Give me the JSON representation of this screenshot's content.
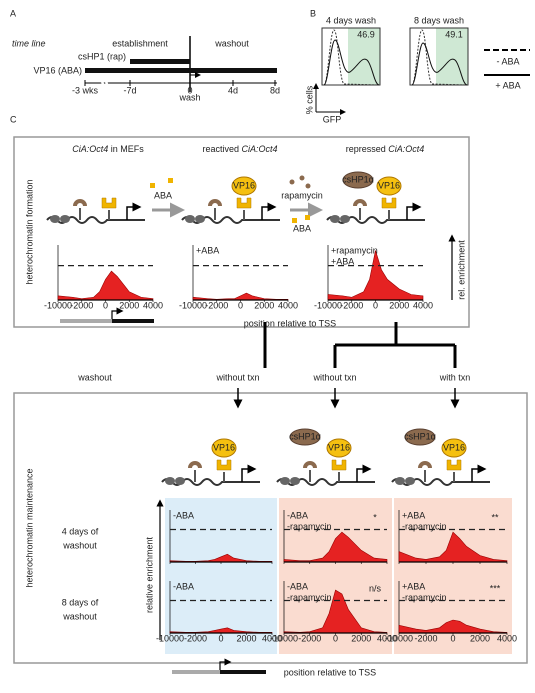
{
  "panel_a": {
    "label": "A",
    "timeline_label": "time line",
    "phases": [
      "establishment",
      "washout"
    ],
    "tracks": [
      {
        "name": "csHP1 (rap)",
        "color": "#c0392b"
      },
      {
        "name": "VP16 (ABA)",
        "color": "#2e75b6"
      }
    ],
    "ticks": [
      "-3 wks",
      "-7d",
      "0",
      "4d",
      "8d"
    ],
    "wash_label": "wash"
  },
  "panel_b": {
    "label": "B",
    "histograms": [
      {
        "title": "4 days wash",
        "value": 46.9
      },
      {
        "title": "8 days wash",
        "value": 49.1
      }
    ],
    "y_label": "% cells",
    "x_label": "GFP",
    "legend": [
      "- ABA",
      "+ ABA"
    ],
    "gate_color": "#cfe8d4"
  },
  "panel_c": {
    "label": "C",
    "fill_color": "#e52222",
    "x": [
      -10000,
      -5000,
      -2000,
      -1000,
      -500,
      0,
      500,
      1000,
      2000,
      3000,
      4000
    ],
    "xticks": [
      -10000,
      -2000,
      0,
      2000,
      4000
    ],
    "ylim": [
      0,
      4
    ],
    "threshold": 2.5,
    "protein_labels": {
      "vp16": "VP16",
      "cshp1": "csHP1α"
    },
    "formation": {
      "side_label": "heterochromatin formation",
      "headers": [
        [
          {
            "t": "CiA:Oct4",
            "i": true
          },
          {
            "t": " in MEFs"
          }
        ],
        [
          {
            "t": "reactived "
          },
          {
            "t": "CiA:Oct4",
            "i": true
          }
        ],
        [
          {
            "t": "repressed "
          },
          {
            "t": "CiA:Oct4",
            "i": true
          }
        ]
      ],
      "reagents": [
        {
          "name": "ABA",
          "color": "#2e75b6"
        },
        {
          "name": "rapamycin",
          "color": "#a33"
        },
        {
          "name": "ABA",
          "color": "#2e75b6"
        }
      ],
      "y_label": "rel. enrichment",
      "x_label": "position relative to TSS",
      "charts": [
        {
          "values": [
            0.3,
            0.2,
            0.1,
            0.2,
            0.6,
            1.5,
            2.1,
            1.7,
            0.6,
            0.2,
            0.1
          ]
        },
        {
          "labels": [
            {
              "text": "+ABA",
              "color": "#2e75b6"
            }
          ],
          "values": [
            0.2,
            0.1,
            0.05,
            0.1,
            0.1,
            0.3,
            0.5,
            0.3,
            0.1,
            0.05,
            0.05
          ]
        },
        {
          "labels": [
            {
              "text": "+rapamycin",
              "color": "#a33"
            },
            {
              "text": "+ABA",
              "color": "#2e75b6"
            }
          ],
          "values": [
            0.4,
            0.3,
            0.2,
            0.6,
            1.5,
            3.6,
            2.2,
            1.5,
            0.8,
            0.4,
            0.3
          ]
        }
      ]
    },
    "flow": {
      "washout": "washout",
      "branches": [
        "without txn",
        "without txn",
        "with txn"
      ]
    },
    "maintenance": {
      "side_label": "heterochromatin maintenance",
      "rows": [
        [
          "4 days of",
          "washout"
        ],
        [
          "8 days of",
          "washout"
        ]
      ],
      "y_label": "relative enrichment",
      "x_label": "position relative to TSS",
      "columns": [
        {
          "background": "#dcedf8",
          "labels": [
            {
              "text": "-ABA",
              "color": "#2e75b6"
            }
          ]
        },
        {
          "background": "#fadcd0",
          "labels": [
            {
              "text": "-ABA",
              "color": "#2e75b6"
            },
            {
              "text": "-rapamycin",
              "color": "#a33"
            }
          ]
        },
        {
          "background": "#fadcd0",
          "labels": [
            {
              "text": "+ABA",
              "color": "#2e75b6"
            },
            {
              "text": "-rapamycin",
              "color": "#a33"
            }
          ]
        }
      ],
      "charts": [
        [
          {
            "values": [
              0.1,
              0.05,
              0.05,
              0.1,
              0.2,
              0.4,
              0.6,
              0.3,
              0.1,
              0.05,
              0.05
            ]
          },
          {
            "sig": "*",
            "values": [
              0.2,
              0.1,
              0.1,
              0.3,
              0.8,
              1.8,
              2.3,
              1.9,
              0.9,
              0.3,
              0.2
            ]
          },
          {
            "sig": "**",
            "values": [
              0.8,
              0.3,
              0.2,
              0.4,
              0.9,
              2.3,
              1.8,
              1.2,
              0.5,
              0.2,
              0.1
            ]
          }
        ],
        [
          {
            "values": [
              0.1,
              0.05,
              0.05,
              0.1,
              0.2,
              0.3,
              0.4,
              0.2,
              0.1,
              0.05,
              0.05
            ]
          },
          {
            "sig": "n/s",
            "values": [
              0.1,
              0.05,
              0.1,
              0.4,
              1.5,
              3.3,
              3.0,
              1.8,
              0.4,
              0.1,
              0.05
            ]
          },
          {
            "sig": "***",
            "values": [
              0.6,
              0.3,
              0.2,
              0.4,
              0.8,
              1.0,
              0.9,
              0.6,
              0.3,
              0.1,
              0.05
            ]
          }
        ]
      ]
    }
  }
}
